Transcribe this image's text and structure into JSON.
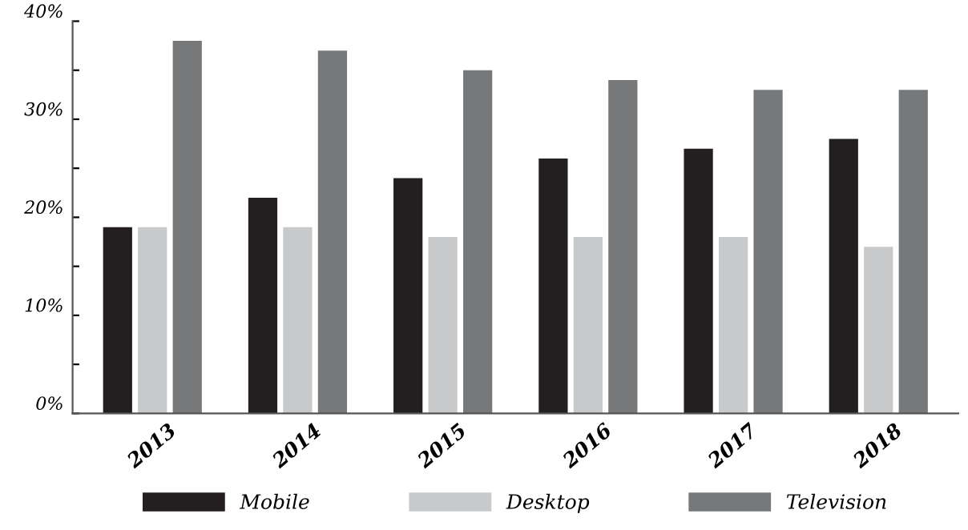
{
  "chart_data": {
    "type": "bar",
    "categories": [
      "2013",
      "2014",
      "2015",
      "2016",
      "2017",
      "2018"
    ],
    "series": [
      {
        "name": "Mobile",
        "color": "#231f20",
        "values": [
          19,
          22,
          24,
          26,
          27,
          28
        ]
      },
      {
        "name": "Desktop",
        "color": "#c8c9cb",
        "values": [
          19,
          19,
          18,
          18,
          18,
          17
        ]
      },
      {
        "name": "Television",
        "color": "#77787a",
        "values": [
          38,
          37,
          35,
          34,
          33,
          33
        ]
      }
    ],
    "ylim": [
      0,
      40
    ],
    "yticks": [
      {
        "value": 0,
        "label": "0%"
      },
      {
        "value": 5,
        "label": null
      },
      {
        "value": 10,
        "label": "10%"
      },
      {
        "value": 15,
        "label": null
      },
      {
        "value": 20,
        "label": "20%"
      },
      {
        "value": 25,
        "label": null
      },
      {
        "value": 30,
        "label": "30%"
      },
      {
        "value": 35,
        "label": null
      },
      {
        "value": 40,
        "label": "40%"
      }
    ],
    "grid": false,
    "legend": "bottom"
  }
}
